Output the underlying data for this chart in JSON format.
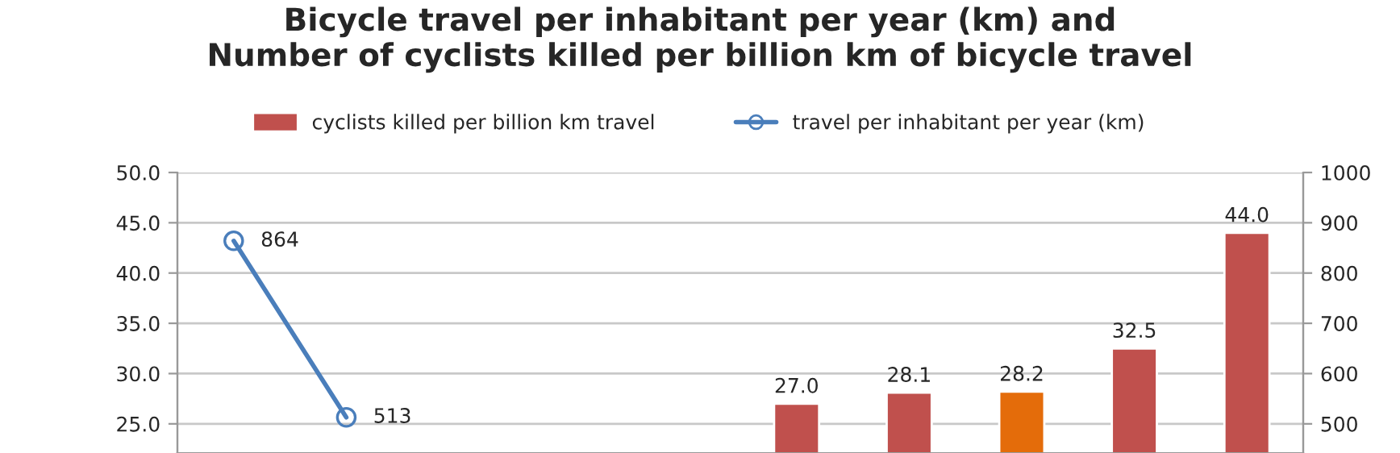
{
  "chart_data": {
    "type": "bar",
    "title": "Bicycle travel per inhabitant per year (km) and\nNumber of cyclists killed per billion km of bicycle travel",
    "categories": [
      null,
      null,
      null,
      null,
      null,
      null,
      null,
      null,
      null,
      null
    ],
    "series": [
      {
        "name": "cyclists killed per billion km travel",
        "color": "#c0504d",
        "colors": [
          "#c0504d",
          "#c0504d",
          "#c0504d",
          "#c0504d",
          "#c0504d",
          "#c0504d",
          "#c0504d",
          "#e46c0a",
          "#c0504d",
          "#c0504d"
        ],
        "values": [
          null,
          null,
          null,
          null,
          null,
          27.0,
          28.1,
          28.2,
          32.5,
          44.0
        ],
        "value_labels": [
          null,
          null,
          null,
          null,
          null,
          "27.0",
          "28.1",
          "28.2",
          "32.5",
          "44.0"
        ]
      },
      {
        "name": "travel per inhabitant per year (km)",
        "type": "line",
        "axis": "y2",
        "color": "#4a7ebb",
        "marker": "circle",
        "values": [
          864,
          513,
          null,
          null,
          null,
          null,
          null,
          null,
          null,
          null
        ],
        "value_labels": [
          "864",
          "513",
          null,
          null,
          null,
          null,
          null,
          null,
          null,
          null
        ]
      }
    ],
    "ylim": [
      22.1,
      50
    ],
    "yticks": [
      {
        "value": 25,
        "label": "25.0"
      },
      {
        "value": 30,
        "label": "30.0"
      },
      {
        "value": 35,
        "label": "35.0"
      },
      {
        "value": 40,
        "label": "40.0"
      },
      {
        "value": 45,
        "label": "45.0"
      },
      {
        "value": 50,
        "label": "50.0"
      }
    ],
    "y2lim": [
      442,
      1000
    ],
    "y2ticks": [
      500,
      600,
      700,
      800,
      900,
      1000
    ],
    "grid": "y",
    "legend": "top"
  }
}
